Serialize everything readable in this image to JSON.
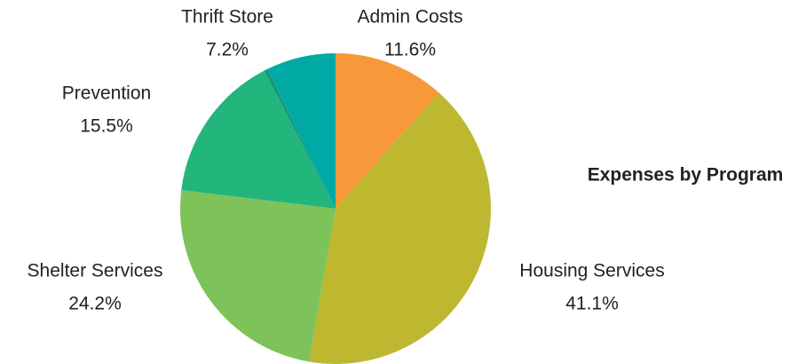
{
  "chart_data": {
    "type": "pie",
    "title": "Expenses by Program",
    "categories": [
      "Admin Costs",
      "Housing Services",
      "Shelter Services",
      "Prevention",
      null,
      "Thrift Store"
    ],
    "values": [
      11.6,
      41.1,
      24.2,
      15.5,
      0.4,
      7.2
    ],
    "value_labels": [
      "11.6%",
      "41.1%",
      "24.2%",
      "15.5%",
      null,
      "7.2%"
    ],
    "colors": [
      "#f7993a",
      "#bdb82f",
      "#7dc35a",
      "#22b57c",
      "#139a7c",
      "#00a9a3"
    ]
  }
}
